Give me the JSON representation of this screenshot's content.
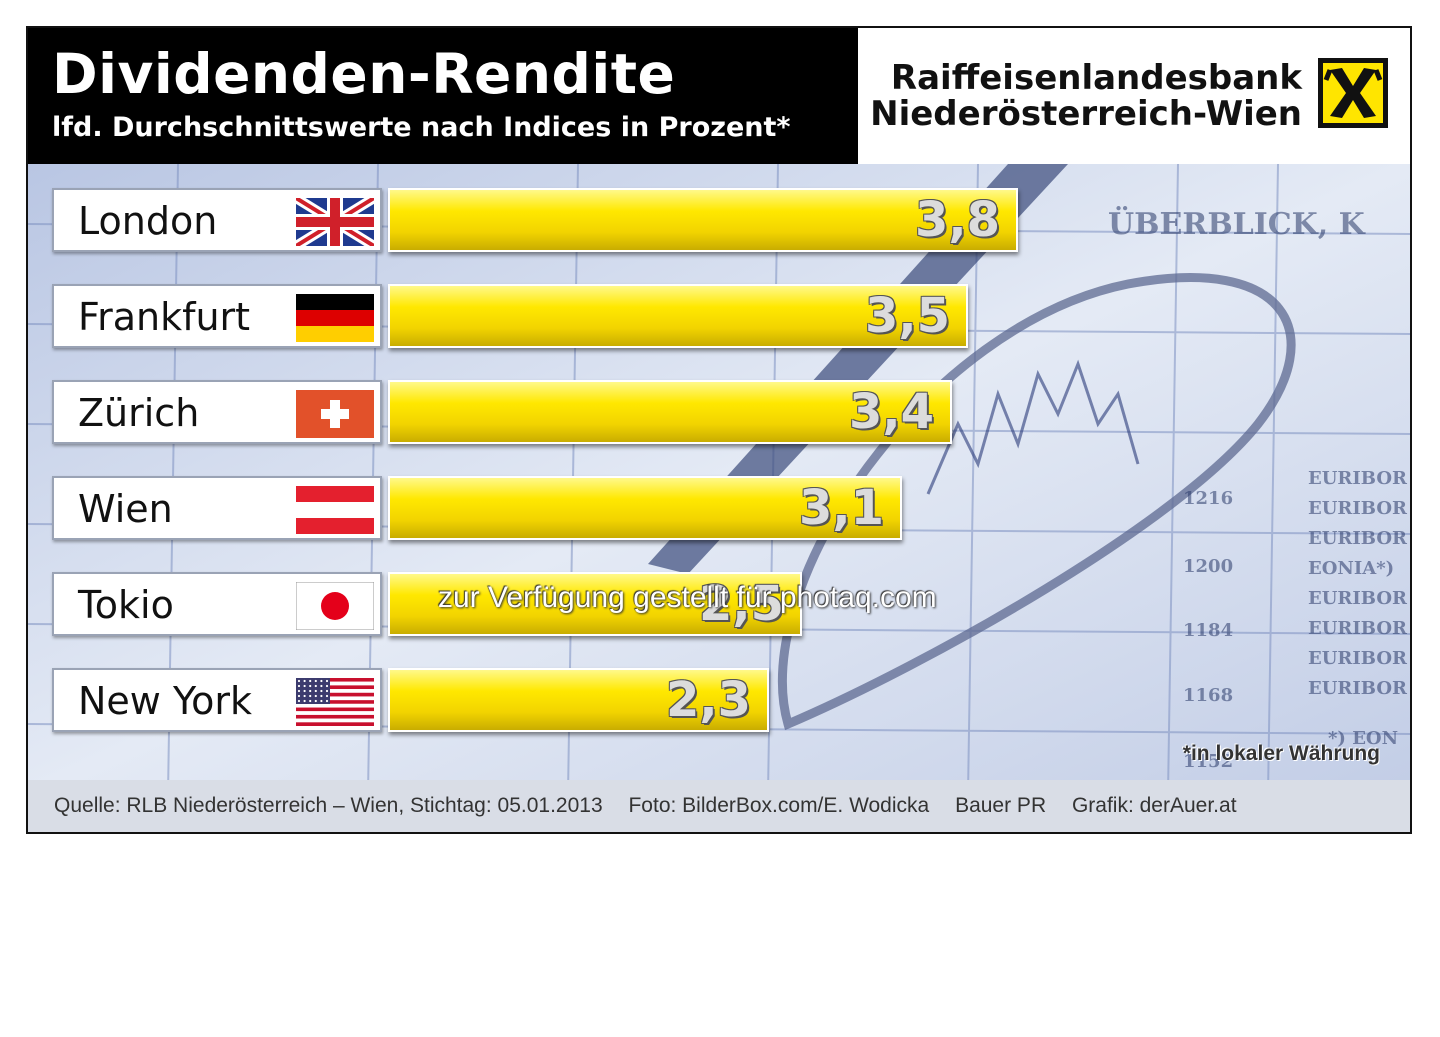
{
  "header": {
    "title": "Dividenden-Rendite",
    "subtitle": "lfd. Durchschnittswerte nach Indices in Prozent*"
  },
  "logo": {
    "line1": "Raiffeisenlandesbank",
    "line2": "Niederösterreich-Wien",
    "icon": "raiffeisen-gable-cross-icon"
  },
  "chart_data": {
    "type": "bar",
    "orientation": "horizontal",
    "categories": [
      "London",
      "Frankfurt",
      "Zürich",
      "Wien",
      "Tokio",
      "New York"
    ],
    "values": [
      3.8,
      3.5,
      3.4,
      3.1,
      2.5,
      2.3
    ],
    "value_labels": [
      "3,8",
      "3,5",
      "3,4",
      "3,1",
      "2,5",
      "2,3"
    ],
    "flags": [
      "uk-flag-icon",
      "germany-flag-icon",
      "switzerland-flag-icon",
      "austria-flag-icon",
      "japan-flag-icon",
      "usa-flag-icon"
    ],
    "bar_color": "#ffe800",
    "xlim": [
      0,
      3.8
    ],
    "grid": false,
    "legend": "none"
  },
  "note": "*in lokaler Währung",
  "footer": {
    "source": "Quelle: RLB Niederösterreich – Wien, Stichtag: 05.01.2013",
    "photo": "Foto: BilderBox.com/E. Wodicka",
    "agency": "Bauer PR",
    "graphic": "Grafik: derAuer.at"
  },
  "watermark": "zur Verfügung gestellt für photaq.com",
  "colors": {
    "header_bg": "#000000",
    "logo_yellow": "#ffe500",
    "bar": "#ffe800"
  }
}
